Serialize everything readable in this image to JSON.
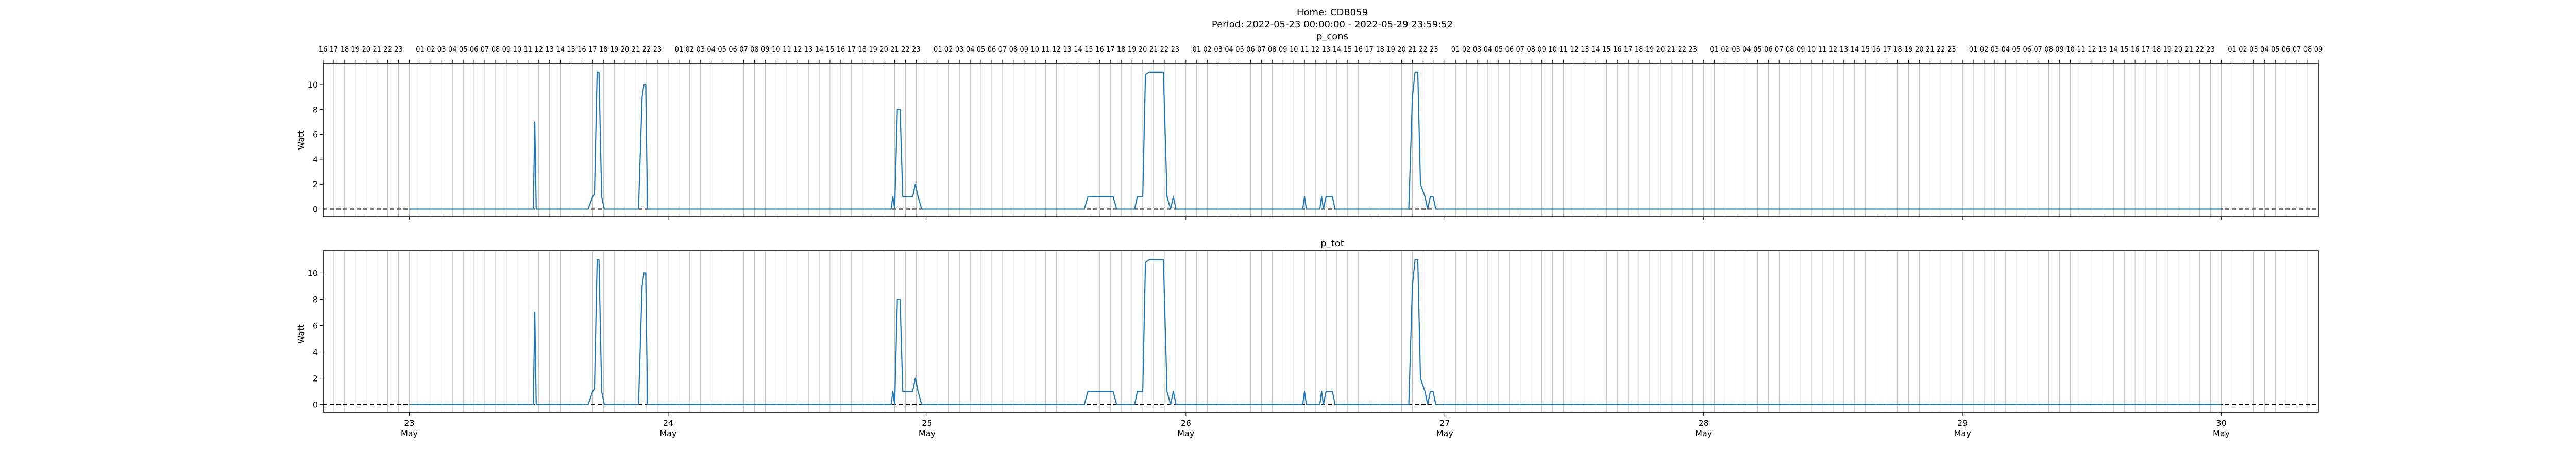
{
  "figure": {
    "title_line1": "Home: CDB059",
    "title_line2": "Period: 2022-05-23 00:00:00 - 2022-05-29 23:59:52"
  },
  "colors": {
    "series": "#1f77b4",
    "zero_line": "#000000",
    "grid": "#b0b0b0",
    "axes": "#000000"
  },
  "top_ticks": {
    "first_hour": 16,
    "first_date": "2022-05-22",
    "count": 186,
    "note_midnight": "blank"
  },
  "chart_data": [
    {
      "type": "line",
      "title": "p_cons",
      "ylabel": "Watt",
      "xlim": [
        "2022-05-22 16:00",
        "2022-05-30 09:00"
      ],
      "ylim": [
        -0.6,
        11.7
      ],
      "yticks": [
        0,
        2,
        4,
        6,
        8,
        10
      ],
      "xticks": [
        {
          "x": "2022-05-23",
          "day": "23",
          "month": "May"
        },
        {
          "x": "2022-05-24",
          "day": "24",
          "month": "May"
        },
        {
          "x": "2022-05-25",
          "day": "25",
          "month": "May"
        },
        {
          "x": "2022-05-26",
          "day": "26",
          "month": "May"
        },
        {
          "x": "2022-05-27",
          "day": "27",
          "month": "May"
        },
        {
          "x": "2022-05-28",
          "day": "28",
          "month": "May"
        },
        {
          "x": "2022-05-29",
          "day": "29",
          "month": "May"
        },
        {
          "x": "2022-05-30",
          "day": "30",
          "month": "May"
        }
      ],
      "grid": "vertical-hourly",
      "zero_line": "dashed",
      "show_xtick_labels": false,
      "series": [
        {
          "points": [
            [
              "2022-05-23 00:00",
              0
            ],
            [
              "2022-05-23 11:30",
              0
            ],
            [
              "2022-05-23 11:38",
              7
            ],
            [
              "2022-05-23 11:46",
              0
            ],
            [
              "2022-05-23 16:35",
              0
            ],
            [
              "2022-05-23 17:00",
              1
            ],
            [
              "2022-05-23 17:10",
              1.2
            ],
            [
              "2022-05-23 17:25",
              11
            ],
            [
              "2022-05-23 17:35",
              11
            ],
            [
              "2022-05-23 17:50",
              1
            ],
            [
              "2022-05-23 18:05",
              0
            ],
            [
              "2022-05-23 21:15",
              0
            ],
            [
              "2022-05-23 21:35",
              9
            ],
            [
              "2022-05-23 21:45",
              10
            ],
            [
              "2022-05-23 21:55",
              10
            ],
            [
              "2022-05-23 22:05",
              0
            ],
            [
              "2022-05-24 20:40",
              0
            ],
            [
              "2022-05-24 20:50",
              1
            ],
            [
              "2022-05-24 21:00",
              0
            ],
            [
              "2022-05-24 21:15",
              8
            ],
            [
              "2022-05-24 21:30",
              8
            ],
            [
              "2022-05-24 21:45",
              1
            ],
            [
              "2022-05-24 22:40",
              1
            ],
            [
              "2022-05-24 22:55",
              2
            ],
            [
              "2022-05-24 23:10",
              1
            ],
            [
              "2022-05-24 23:30",
              0
            ],
            [
              "2022-05-25 14:35",
              0
            ],
            [
              "2022-05-25 14:55",
              1
            ],
            [
              "2022-05-25 17:15",
              1
            ],
            [
              "2022-05-25 17:35",
              0
            ],
            [
              "2022-05-25 19:15",
              0
            ],
            [
              "2022-05-25 19:30",
              1
            ],
            [
              "2022-05-25 20:00",
              1
            ],
            [
              "2022-05-25 20:15",
              10.8
            ],
            [
              "2022-05-25 20:35",
              11
            ],
            [
              "2022-05-25 21:55",
              11
            ],
            [
              "2022-05-25 22:15",
              1
            ],
            [
              "2022-05-25 22:35",
              0
            ],
            [
              "2022-05-25 22:50",
              1
            ],
            [
              "2022-05-25 23:05",
              0
            ],
            [
              "2022-05-26 10:50",
              0
            ],
            [
              "2022-05-26 11:00",
              1
            ],
            [
              "2022-05-26 11:10",
              0
            ],
            [
              "2022-05-26 12:25",
              0
            ],
            [
              "2022-05-26 12:35",
              1
            ],
            [
              "2022-05-26 12:45",
              0
            ],
            [
              "2022-05-26 13:00",
              1
            ],
            [
              "2022-05-26 13:35",
              1
            ],
            [
              "2022-05-26 13:50",
              0
            ],
            [
              "2022-05-26 20:40",
              0
            ],
            [
              "2022-05-26 21:00",
              9
            ],
            [
              "2022-05-26 21:15",
              11
            ],
            [
              "2022-05-26 21:30",
              11
            ],
            [
              "2022-05-26 21:45",
              2
            ],
            [
              "2022-05-26 22:10",
              1
            ],
            [
              "2022-05-26 22:25",
              0
            ],
            [
              "2022-05-26 22:40",
              1
            ],
            [
              "2022-05-26 22:55",
              1
            ],
            [
              "2022-05-26 23:10",
              0
            ],
            [
              "2022-05-29 23:59",
              0
            ]
          ]
        }
      ]
    },
    {
      "type": "line",
      "title": "p_tot",
      "ylabel": "Watt",
      "xlim": [
        "2022-05-22 16:00",
        "2022-05-30 09:00"
      ],
      "ylim": [
        -0.6,
        11.7
      ],
      "yticks": [
        0,
        2,
        4,
        6,
        8,
        10
      ],
      "xticks": [
        {
          "x": "2022-05-23",
          "day": "23",
          "month": "May"
        },
        {
          "x": "2022-05-24",
          "day": "24",
          "month": "May"
        },
        {
          "x": "2022-05-25",
          "day": "25",
          "month": "May"
        },
        {
          "x": "2022-05-26",
          "day": "26",
          "month": "May"
        },
        {
          "x": "2022-05-27",
          "day": "27",
          "month": "May"
        },
        {
          "x": "2022-05-28",
          "day": "28",
          "month": "May"
        },
        {
          "x": "2022-05-29",
          "day": "29",
          "month": "May"
        },
        {
          "x": "2022-05-30",
          "day": "30",
          "month": "May"
        }
      ],
      "grid": "vertical-hourly",
      "zero_line": "dashed",
      "show_xtick_labels": true,
      "series": [
        {
          "points": [
            [
              "2022-05-23 00:00",
              0
            ],
            [
              "2022-05-23 11:30",
              0
            ],
            [
              "2022-05-23 11:38",
              7
            ],
            [
              "2022-05-23 11:46",
              0
            ],
            [
              "2022-05-23 16:35",
              0
            ],
            [
              "2022-05-23 17:00",
              1
            ],
            [
              "2022-05-23 17:10",
              1.2
            ],
            [
              "2022-05-23 17:25",
              11
            ],
            [
              "2022-05-23 17:35",
              11
            ],
            [
              "2022-05-23 17:50",
              1
            ],
            [
              "2022-05-23 18:05",
              0
            ],
            [
              "2022-05-23 21:15",
              0
            ],
            [
              "2022-05-23 21:35",
              9
            ],
            [
              "2022-05-23 21:45",
              10
            ],
            [
              "2022-05-23 21:55",
              10
            ],
            [
              "2022-05-23 22:05",
              0
            ],
            [
              "2022-05-24 20:40",
              0
            ],
            [
              "2022-05-24 20:50",
              1
            ],
            [
              "2022-05-24 21:00",
              0
            ],
            [
              "2022-05-24 21:15",
              8
            ],
            [
              "2022-05-24 21:30",
              8
            ],
            [
              "2022-05-24 21:45",
              1
            ],
            [
              "2022-05-24 22:40",
              1
            ],
            [
              "2022-05-24 22:55",
              2
            ],
            [
              "2022-05-24 23:10",
              1
            ],
            [
              "2022-05-24 23:30",
              0
            ],
            [
              "2022-05-25 14:35",
              0
            ],
            [
              "2022-05-25 14:55",
              1
            ],
            [
              "2022-05-25 17:15",
              1
            ],
            [
              "2022-05-25 17:35",
              0
            ],
            [
              "2022-05-25 19:15",
              0
            ],
            [
              "2022-05-25 19:30",
              1
            ],
            [
              "2022-05-25 20:00",
              1
            ],
            [
              "2022-05-25 20:15",
              10.8
            ],
            [
              "2022-05-25 20:35",
              11
            ],
            [
              "2022-05-25 21:55",
              11
            ],
            [
              "2022-05-25 22:15",
              1
            ],
            [
              "2022-05-25 22:35",
              0
            ],
            [
              "2022-05-25 22:50",
              1
            ],
            [
              "2022-05-25 23:05",
              0
            ],
            [
              "2022-05-26 10:50",
              0
            ],
            [
              "2022-05-26 11:00",
              1
            ],
            [
              "2022-05-26 11:10",
              0
            ],
            [
              "2022-05-26 12:25",
              0
            ],
            [
              "2022-05-26 12:35",
              1
            ],
            [
              "2022-05-26 12:45",
              0
            ],
            [
              "2022-05-26 13:00",
              1
            ],
            [
              "2022-05-26 13:35",
              1
            ],
            [
              "2022-05-26 13:50",
              0
            ],
            [
              "2022-05-26 20:40",
              0
            ],
            [
              "2022-05-26 21:00",
              9
            ],
            [
              "2022-05-26 21:15",
              11
            ],
            [
              "2022-05-26 21:30",
              11
            ],
            [
              "2022-05-26 21:45",
              2
            ],
            [
              "2022-05-26 22:10",
              1
            ],
            [
              "2022-05-26 22:25",
              0
            ],
            [
              "2022-05-26 22:40",
              1
            ],
            [
              "2022-05-26 22:55",
              1
            ],
            [
              "2022-05-26 23:10",
              0
            ],
            [
              "2022-05-29 23:59",
              0
            ]
          ]
        }
      ]
    }
  ]
}
